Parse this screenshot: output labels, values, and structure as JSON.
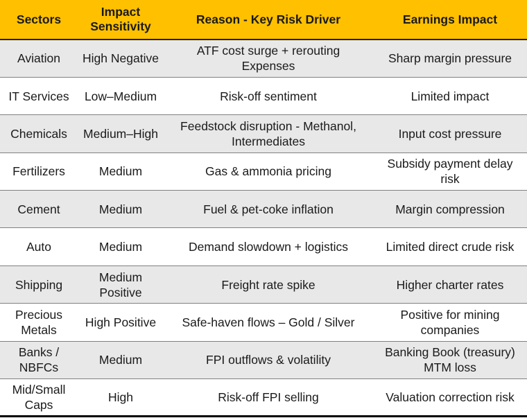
{
  "table": {
    "headers": [
      "Sectors",
      "Impact Sensitivity",
      "Reason - Key Risk Driver",
      "Earnings Impact"
    ],
    "rows": [
      [
        "Aviation",
        "High Negative",
        "ATF cost surge + rerouting Expenses",
        "Sharp margin pressure"
      ],
      [
        "IT Services",
        "Low–Medium",
        "Risk-off sentiment",
        "Limited impact"
      ],
      [
        "Chemicals",
        "Medium–High",
        "Feedstock disruption - Methanol, Intermediates",
        "Input cost pressure"
      ],
      [
        "Fertilizers",
        "Medium",
        "Gas & ammonia pricing",
        "Subsidy payment delay risk"
      ],
      [
        "Cement",
        "Medium",
        "Fuel & pet-coke inflation",
        "Margin compression"
      ],
      [
        "Auto",
        "Medium",
        "Demand slowdown + logistics",
        "Limited direct crude risk"
      ],
      [
        "Shipping",
        "Medium Positive",
        "Freight rate spike",
        "Higher charter rates"
      ],
      [
        "Precious Metals",
        "High Positive",
        "Safe-haven flows – Gold / Silver",
        "Positive for mining companies"
      ],
      [
        "Banks / NBFCs",
        "Medium",
        "FPI outflows & volatility",
        "Banking Book (treasury) MTM loss"
      ],
      [
        "Mid/Small Caps",
        "High",
        "Risk-off FPI selling",
        "Valuation correction risk"
      ]
    ]
  }
}
